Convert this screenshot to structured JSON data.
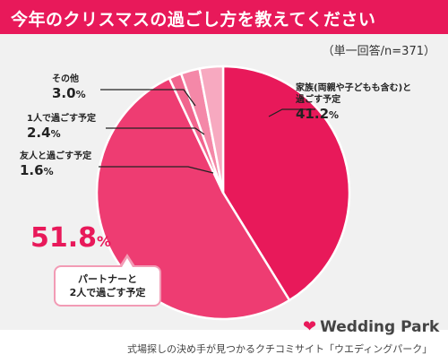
{
  "header": {
    "title": "今年のクリスマスの過ごし方を教えてください",
    "bg_color": "#e8195a"
  },
  "subtitle": "（単一回答/n=371）",
  "chart_data": {
    "type": "pie",
    "title": "今年のクリスマスの過ごし方を教えてください",
    "slices": [
      {
        "label": "家族(両親や子どもも含む)と過ごす予定",
        "label_lines": [
          "家族(両親や子どもも含む)と",
          "過ごす予定"
        ],
        "value": 41.2,
        "pct_num": "41.2",
        "color": "#e8195a"
      },
      {
        "label": "パートナーと2人で過ごす予定",
        "label_lines": [
          "パートナーと",
          "2人で過ごす予定"
        ],
        "value": 51.8,
        "pct_num": "51.8",
        "color": "#ee3c72"
      },
      {
        "label": "友人と過ごす予定",
        "label_lines": [
          "友人と過ごす予定"
        ],
        "value": 1.6,
        "pct_num": "1.6",
        "color": "#f1658e"
      },
      {
        "label": "1人で過ごす予定",
        "label_lines": [
          "1人で過ごす予定"
        ],
        "value": 2.4,
        "pct_num": "2.4",
        "color": "#f488a8"
      },
      {
        "label": "その他",
        "label_lines": [
          "その他"
        ],
        "value": 3.0,
        "pct_num": "3.0",
        "color": "#f7a9c0"
      }
    ],
    "unit": "%"
  },
  "logo": {
    "brand": "Wedding Park"
  },
  "footer": "式場探しの決め手が見つかるクチコミサイト「ウエディングパーク」"
}
